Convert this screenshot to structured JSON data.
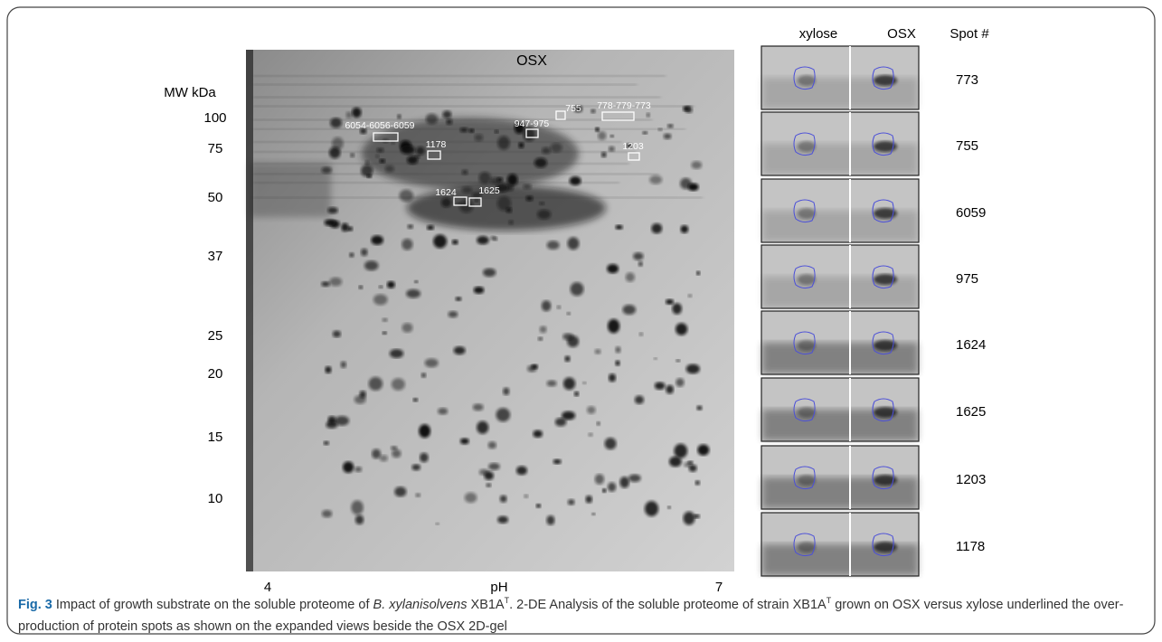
{
  "figure": {
    "gel_title": "OSX",
    "mw_label": "MW kDa",
    "mw_markers": [
      "100",
      "75",
      "50",
      "37",
      "25",
      "20",
      "15",
      "10"
    ],
    "ph_label": "pH",
    "ph_min": "4",
    "ph_max": "7",
    "spot_labels": [
      "6054-6056-6059",
      "1178",
      "947-975",
      "755",
      "778-779-773",
      "1203",
      "1624",
      "1625"
    ],
    "panel_headers": [
      "xylose",
      "OSX",
      "Spot #"
    ],
    "spots": [
      "773",
      "755",
      "6059",
      "975",
      "1624",
      "1625",
      "1203",
      "1178"
    ]
  },
  "caption": {
    "label": "Fig. 3",
    "parts": [
      " Impact of growth substrate on the soluble proteome of ",
      "B. xylanisolvens",
      " XB1A",
      "T",
      ". 2-DE Analysis of the soluble proteome of strain XB1A",
      "T",
      " grown on OSX versus xylose underlined the over-production of protein spots as shown on the expanded views beside the OSX 2D-gel"
    ]
  }
}
